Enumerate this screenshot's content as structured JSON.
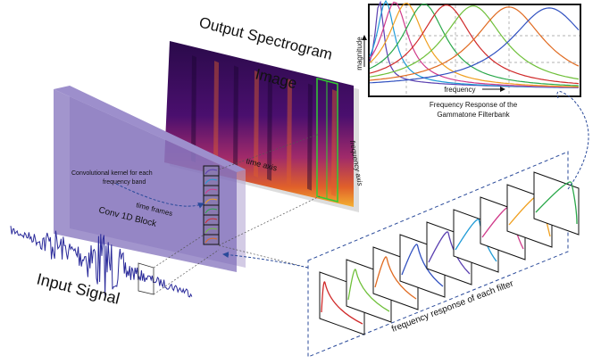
{
  "spectrogram": {
    "title_lines": [
      "Output Spectrogram",
      "Image"
    ],
    "time_axis": "time axis",
    "frequency_axis": "frequency axis"
  },
  "filterbank": {
    "caption_lines": [
      "Frequency Response of the",
      "Gammatone Filterbank"
    ],
    "y_label": "magnitude",
    "x_label": "frequency"
  },
  "conv_block": {
    "label": "Conv 1D Block",
    "time_label": "time frames",
    "kernel_lines": [
      "Convolutional kernel for each",
      "frequency band"
    ]
  },
  "input": {
    "label": "Input Signal"
  },
  "filters": {
    "label": "frequency response of each filter"
  }
}
